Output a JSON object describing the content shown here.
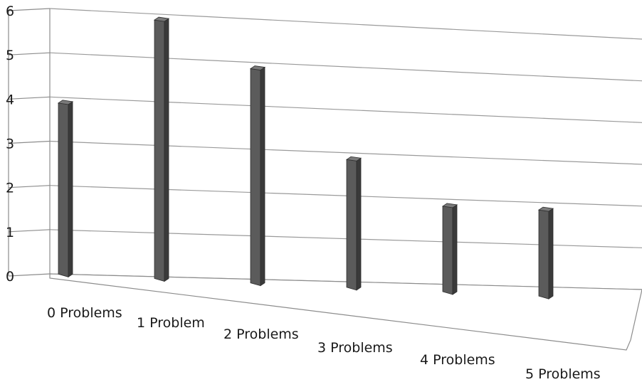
{
  "chart_data": {
    "type": "bar",
    "categories": [
      "0 Problems",
      "1 Problem",
      "2 Problems",
      "3 Problems",
      "4 Problems",
      "5 Problems"
    ],
    "values": [
      4,
      6,
      5,
      3,
      2,
      2
    ],
    "ylim": [
      0,
      6
    ],
    "yticks": [
      "0",
      "1",
      "2",
      "3",
      "4",
      "5",
      "6"
    ],
    "grid": true,
    "legend": "none",
    "three_d": true,
    "colors": {
      "bar_front": "#5b5b5b",
      "bar_side": "#3a3a3a",
      "bar_top": "#7a7a7a",
      "grid": "#9a9a9a"
    }
  }
}
